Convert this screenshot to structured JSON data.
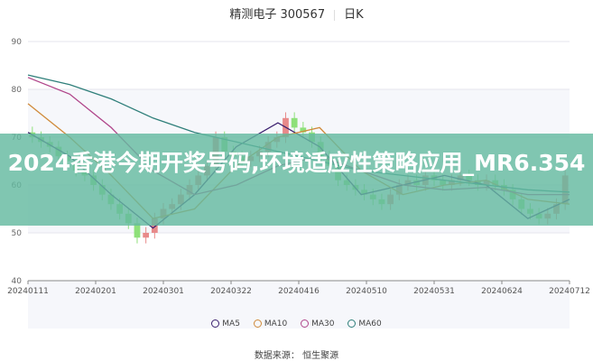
{
  "header": {
    "stock": "精测电子 300567",
    "period": "日K"
  },
  "banner": {
    "title": "2024香港今期开奖号码,环境适应性策略应用_MR6.354"
  },
  "source": "数据来源： 恒生聚源",
  "chart_data": {
    "type": "candlestick",
    "ylim": [
      40,
      90
    ],
    "yticks": [
      "40",
      "50",
      "60",
      "70",
      "80",
      "90"
    ],
    "xticks": [
      "20240111",
      "20240201",
      "20240301",
      "20240322",
      "20240416",
      "20240510",
      "20240531",
      "20240624",
      "20240712"
    ],
    "colors": {
      "up": "#e88a8a",
      "down": "#8ee07a",
      "MA5": "#3b1f6e",
      "MA10": "#d08a3a",
      "MA30": "#b0458a",
      "MA60": "#2f7f7a"
    },
    "closes": [
      70,
      69,
      68,
      66,
      65,
      63,
      62,
      60,
      58,
      56,
      54,
      52,
      49,
      50,
      53,
      55,
      56,
      58,
      60,
      62,
      64,
      70,
      67,
      66,
      65,
      66,
      67,
      69,
      70,
      74,
      72,
      71,
      69,
      66,
      64,
      61,
      60,
      59,
      58,
      57,
      56,
      58,
      60,
      61,
      60,
      62,
      61,
      60,
      61,
      62,
      61,
      60,
      61,
      60,
      59,
      57,
      55,
      54,
      53,
      54,
      56,
      62
    ],
    "series": [
      {
        "name": "MA5",
        "values": [
          71,
          66,
          58,
          51,
          58,
          68,
          73,
          68,
          58,
          60,
          62,
          60,
          53,
          57
        ]
      },
      {
        "name": "MA10",
        "values": [
          77,
          70,
          62,
          53,
          55,
          64,
          70,
          72,
          63,
          58,
          60,
          61,
          57,
          56
        ]
      },
      {
        "name": "MA30",
        "values": [
          82.5,
          79,
          72,
          63,
          58,
          60,
          64,
          66,
          63,
          60,
          59,
          59.5,
          58,
          58
        ]
      },
      {
        "name": "MA60",
        "values": [
          83,
          81,
          78,
          74,
          71,
          69,
          67,
          65,
          63,
          62,
          61,
          60,
          59,
          58.5
        ]
      }
    ]
  }
}
